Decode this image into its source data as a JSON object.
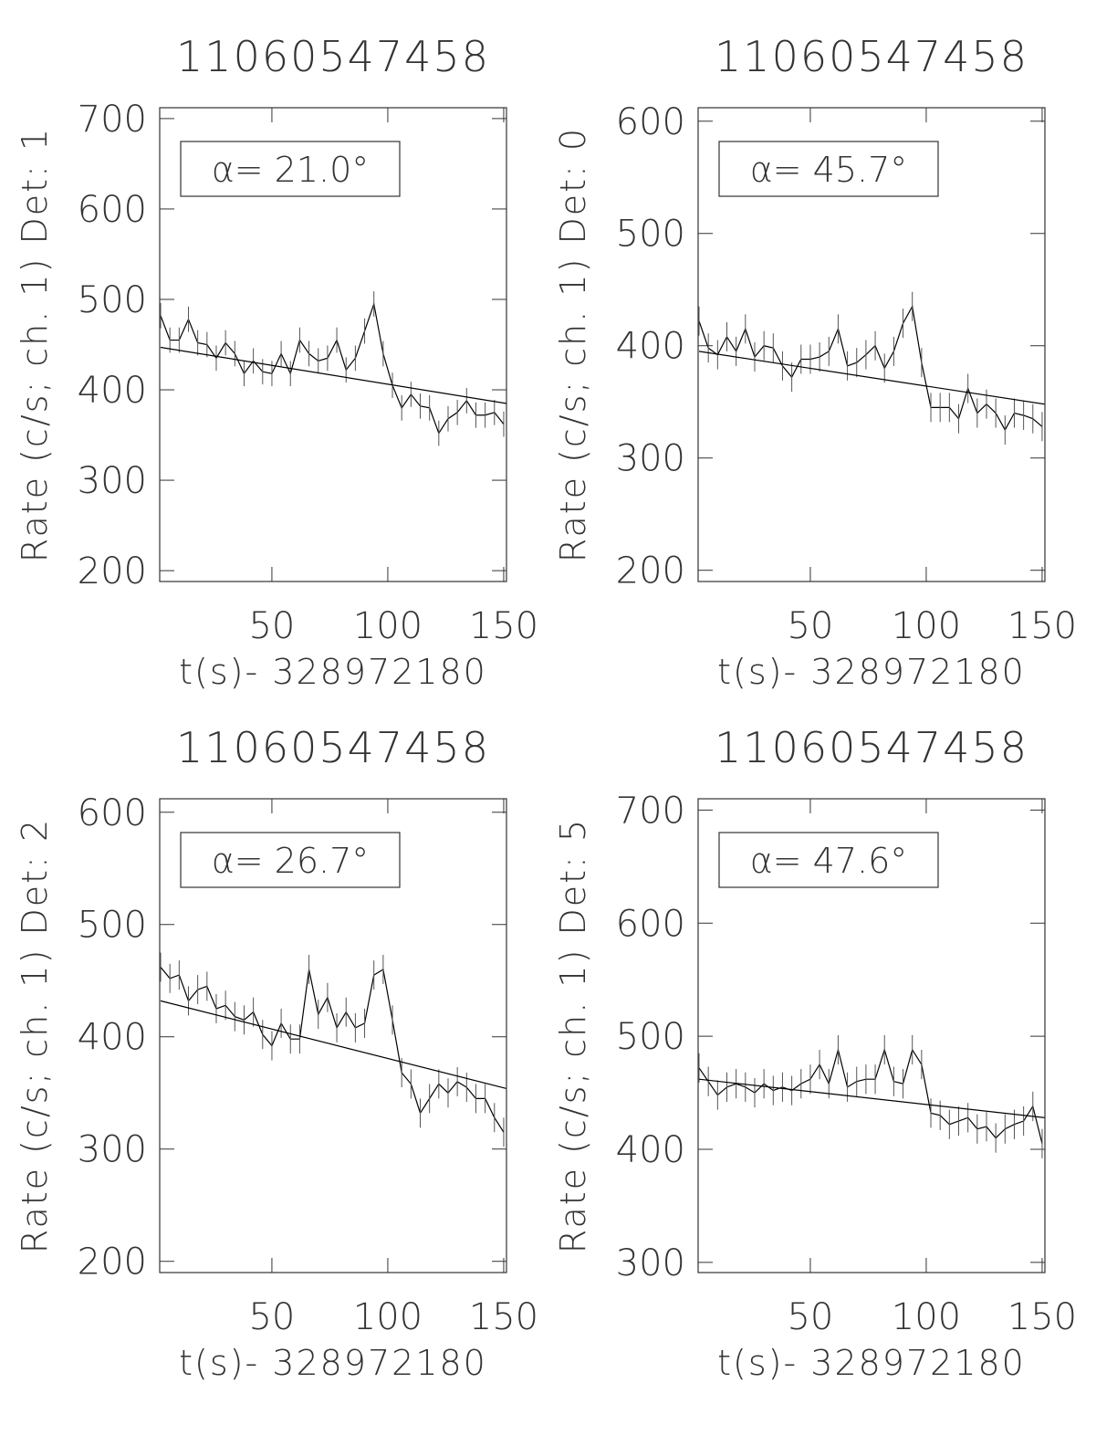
{
  "chart_data": [
    {
      "type": "line",
      "title": "11060547458",
      "xlabel": "t(s)- 328972180",
      "ylabel": "Rate (c/s; ch. 1) Det: 1",
      "annotation": "α= 21.0°",
      "x": [
        2,
        6,
        10,
        14,
        18,
        22,
        26,
        30,
        34,
        38,
        42,
        46,
        50,
        54,
        58,
        62,
        66,
        70,
        74,
        78,
        82,
        86,
        90,
        94,
        98,
        102,
        106,
        110,
        114,
        118,
        122,
        126,
        130,
        134,
        138,
        142,
        146,
        150
      ],
      "series": [
        {
          "color": "#000000",
          "error": 14,
          "values": [
            482,
            455,
            455,
            478,
            452,
            450,
            435,
            452,
            440,
            418,
            432,
            420,
            418,
            440,
            418,
            455,
            440,
            432,
            435,
            455,
            422,
            435,
            465,
            495,
            440,
            405,
            380,
            395,
            382,
            380,
            352,
            368,
            375,
            388,
            372,
            372,
            375,
            362
          ]
        },
        {
          "color": "#000000",
          "x": [
            2,
            151
          ],
          "values": [
            447,
            385
          ]
        }
      ],
      "xlim": [
        1.6,
        151.2
      ],
      "xticks": [
        50,
        100,
        150
      ],
      "ylim": [
        188,
        712
      ],
      "yticks": [
        200,
        300,
        400,
        500,
        600,
        700
      ]
    },
    {
      "type": "line",
      "title": "11060547458",
      "xlabel": "t(s)- 328972180",
      "ylabel": "Rate (c/s; ch. 1) Det: 0",
      "annotation": "α= 45.7°",
      "x": [
        2,
        6,
        10,
        14,
        18,
        22,
        26,
        30,
        34,
        38,
        42,
        46,
        50,
        54,
        58,
        62,
        66,
        70,
        74,
        78,
        82,
        86,
        90,
        94,
        98,
        102,
        106,
        110,
        114,
        118,
        122,
        126,
        130,
        134,
        138,
        142,
        146,
        150
      ],
      "series": [
        {
          "color": "#000000",
          "error": 13,
          "values": [
            422,
            398,
            392,
            408,
            395,
            415,
            390,
            400,
            398,
            382,
            372,
            388,
            388,
            390,
            395,
            415,
            382,
            385,
            392,
            400,
            380,
            395,
            420,
            435,
            385,
            345,
            345,
            345,
            335,
            362,
            340,
            348,
            340,
            325,
            340,
            338,
            335,
            328
          ]
        },
        {
          "color": "#000000",
          "x": [
            2,
            151
          ],
          "values": [
            395,
            348
          ]
        }
      ],
      "xlim": [
        1.6,
        151.2
      ],
      "xticks": [
        50,
        100,
        150
      ],
      "ylim": [
        190,
        612
      ],
      "yticks": [
        200,
        300,
        400,
        500,
        600
      ]
    },
    {
      "type": "line",
      "title": "11060547458",
      "xlabel": "t(s)- 328972180",
      "ylabel": "Rate (c/s; ch. 1) Det: 2",
      "annotation": "α= 26.7°",
      "x": [
        2,
        6,
        10,
        14,
        18,
        22,
        26,
        30,
        34,
        38,
        42,
        46,
        50,
        54,
        58,
        62,
        66,
        70,
        74,
        78,
        82,
        86,
        90,
        94,
        98,
        102,
        106,
        110,
        114,
        118,
        122,
        126,
        130,
        134,
        138,
        142,
        146,
        150
      ],
      "series": [
        {
          "color": "#000000",
          "error": 13,
          "values": [
            462,
            452,
            455,
            432,
            442,
            445,
            425,
            428,
            418,
            415,
            422,
            402,
            392,
            412,
            398,
            398,
            460,
            420,
            435,
            408,
            422,
            408,
            412,
            455,
            460,
            415,
            368,
            358,
            332,
            345,
            358,
            350,
            360,
            355,
            345,
            345,
            328,
            315
          ]
        },
        {
          "color": "#000000",
          "x": [
            2,
            151
          ],
          "values": [
            432,
            354
          ]
        }
      ],
      "xlim": [
        1.6,
        151.2
      ],
      "xticks": [
        50,
        100,
        150
      ],
      "ylim": [
        190,
        612
      ],
      "yticks": [
        200,
        300,
        400,
        500,
        600
      ]
    },
    {
      "type": "line",
      "title": "11060547458",
      "xlabel": "t(s)- 328972180",
      "ylabel": "Rate (c/s; ch. 1) Det: 5",
      "annotation": "α= 47.6°",
      "x": [
        2,
        6,
        10,
        14,
        18,
        22,
        26,
        30,
        34,
        38,
        42,
        46,
        50,
        54,
        58,
        62,
        66,
        70,
        74,
        78,
        82,
        86,
        90,
        94,
        98,
        102,
        106,
        110,
        114,
        118,
        122,
        126,
        130,
        134,
        138,
        142,
        146,
        150
      ],
      "series": [
        {
          "color": "#000000",
          "error": 13,
          "values": [
            472,
            460,
            448,
            455,
            458,
            455,
            450,
            458,
            452,
            455,
            452,
            458,
            462,
            475,
            458,
            488,
            455,
            460,
            462,
            462,
            488,
            460,
            458,
            488,
            475,
            432,
            430,
            422,
            425,
            428,
            418,
            420,
            410,
            418,
            422,
            425,
            438,
            405
          ]
        },
        {
          "color": "#000000",
          "x": [
            2,
            151
          ],
          "values": [
            462,
            428
          ]
        }
      ],
      "xlim": [
        1.6,
        151.2
      ],
      "xticks": [
        50,
        100,
        150
      ],
      "ylim": [
        291,
        710
      ],
      "yticks": [
        300,
        400,
        500,
        600,
        700
      ]
    }
  ]
}
